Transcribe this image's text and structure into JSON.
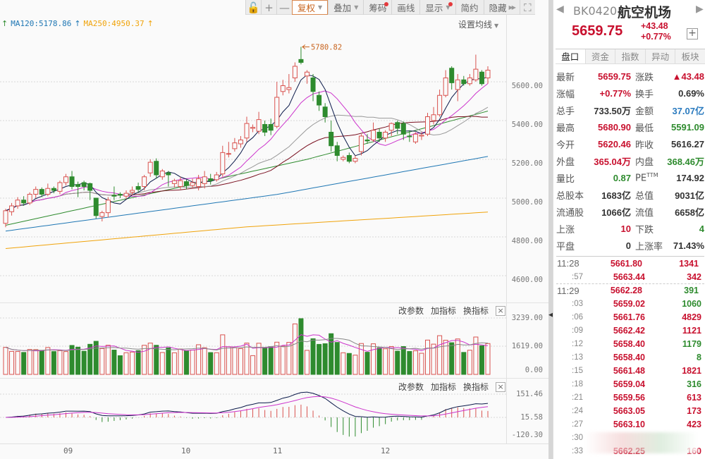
{
  "toolbar": {
    "buttons": [
      {
        "id": "lock",
        "label": "🔓",
        "icon": "unlock-icon"
      },
      {
        "id": "zoom_in",
        "label": "+",
        "icon": "plus-icon"
      },
      {
        "id": "zoom_out",
        "label": "—",
        "icon": "minus-icon"
      },
      {
        "id": "fuquan",
        "label": "复权",
        "caret": true,
        "active": true
      },
      {
        "id": "diejia",
        "label": "叠加",
        "caret": true
      },
      {
        "id": "chouma",
        "label": "筹码",
        "dot": true
      },
      {
        "id": "huaxian",
        "label": "画线"
      },
      {
        "id": "xianshi",
        "label": "显示",
        "caret": true,
        "dot": true
      },
      {
        "id": "jianyue",
        "label": "简约"
      },
      {
        "id": "yincang",
        "label": "隐藏",
        "double_arrow": true
      },
      {
        "id": "fullscreen",
        "label": "⛶",
        "icon": "fullscreen-icon"
      }
    ]
  },
  "ma_legend": [
    {
      "label": "",
      "arrow": "↑",
      "color": "#2e8b2e"
    },
    {
      "label": "MA120:5178.86",
      "arrow": "↑",
      "color": "#1f77b4"
    },
    {
      "label": "MA250:4950.37",
      "arrow": "↑",
      "color": "#f0a30a"
    }
  ],
  "set_ma_label": "设置均线",
  "main_chart": {
    "y_ticks": [
      "5600.00",
      "5400.00",
      "5200.00",
      "5000.00",
      "4800.00",
      "4600.00"
    ],
    "high_marker": "5780.82"
  },
  "volume_panel": {
    "actions": [
      "改参数",
      "加指标",
      "换指标"
    ],
    "y_ticks": [
      "3239.00",
      "1619.00",
      "0.00"
    ]
  },
  "macd_panel": {
    "actions": [
      "改参数",
      "加指标",
      "换指标"
    ],
    "y_ticks": [
      "151.46",
      "15.58",
      "-120.30"
    ]
  },
  "date_axis": [
    "09",
    "10",
    "11",
    "12"
  ],
  "colors": {
    "up": "#d9534f",
    "down": "#2e8b2e",
    "ma5": "#0b1a4a",
    "ma10": "#cc33cc",
    "ma20": "#999999",
    "ma30": "#7a1020",
    "ma60": "#2e8b2e",
    "ma120": "#1f77b4",
    "ma250": "#f0a30a",
    "accent_red": "#c8102e",
    "accent_green": "#2e8b2e",
    "accent_blue": "#2b7bbf"
  },
  "quote": {
    "code": "BK0420",
    "name": "航空机场",
    "price": "5659.75",
    "change": "+43.48",
    "change_pct": "+0.77%",
    "tabs": [
      "盘口",
      "资金",
      "指数",
      "异动",
      "板块"
    ],
    "rows": [
      {
        "l": "最新",
        "v": "5659.75",
        "vc": "red",
        "l2": "涨跌",
        "v2": "▲43.48",
        "v2c": "red"
      },
      {
        "l": "涨幅",
        "v": "+0.77%",
        "vc": "red",
        "l2": "换手",
        "v2": "0.69%",
        "v2c": "dark"
      },
      {
        "l": "总手",
        "v": "733.50万",
        "vc": "dark",
        "l2": "金额",
        "v2": "37.07亿",
        "v2c": "blue"
      },
      {
        "l": "最高",
        "v": "5680.90",
        "vc": "red",
        "l2": "最低",
        "v2": "5591.09",
        "v2c": "green"
      },
      {
        "l": "今开",
        "v": "5620.46",
        "vc": "red",
        "l2": "昨收",
        "v2": "5616.27",
        "v2c": "dark"
      },
      {
        "l": "外盘",
        "v": "365.04万",
        "vc": "red",
        "l2": "内盘",
        "v2": "368.46万",
        "v2c": "green"
      },
      {
        "l": "量比",
        "v": "0.87",
        "vc": "green",
        "l2": "PE",
        "l2sup": "TTM",
        "v2": "174.92",
        "v2c": "dark"
      },
      {
        "l": "总股本",
        "v": "1683亿",
        "vc": "dark",
        "l2": "总值",
        "v2": "9031亿",
        "v2c": "dark"
      },
      {
        "l": "流通股",
        "v": "1066亿",
        "vc": "dark",
        "l2": "流值",
        "v2": "6658亿",
        "v2c": "dark"
      },
      {
        "l": "上涨",
        "v": "10",
        "vc": "red",
        "l2": "下跌",
        "v2": "4",
        "v2c": "green"
      },
      {
        "l": "平盘",
        "v": "0",
        "vc": "dark",
        "l2": "上涨率",
        "v2": "71.43%",
        "v2c": "dark"
      }
    ]
  },
  "ticks": [
    {
      "time": "11:28",
      "full": true,
      "price": "5661.80",
      "vol": "1341",
      "vc": "red"
    },
    {
      "time": ":57",
      "price": "5663.44",
      "vol": "342",
      "vc": "red"
    },
    {
      "time": "11:29",
      "full": true,
      "sep": true,
      "price": "5662.28",
      "vol": "391",
      "vc": "green"
    },
    {
      "time": ":03",
      "price": "5659.02",
      "vol": "1060",
      "vc": "green"
    },
    {
      "time": ":06",
      "price": "5661.76",
      "vol": "4829",
      "vc": "red"
    },
    {
      "time": ":09",
      "price": "5662.42",
      "vol": "1121",
      "vc": "red"
    },
    {
      "time": ":12",
      "price": "5658.40",
      "vol": "1179",
      "vc": "green"
    },
    {
      "time": ":13",
      "price": "5658.40",
      "vol": "8",
      "vc": "green"
    },
    {
      "time": ":15",
      "price": "5661.48",
      "vol": "1821",
      "vc": "red"
    },
    {
      "time": ":18",
      "price": "5659.04",
      "vol": "316",
      "vc": "green"
    },
    {
      "time": ":21",
      "price": "5659.56",
      "vol": "613",
      "vc": "red"
    },
    {
      "time": ":24",
      "price": "5663.05",
      "vol": "173",
      "vc": "red"
    },
    {
      "time": ":27",
      "price": "5663.10",
      "vol": "423",
      "vc": "red"
    },
    {
      "time": ":30",
      "price": "",
      "vol": "",
      "vc": "green"
    },
    {
      "time": ":33",
      "price": "5662.25",
      "vol": "160",
      "vc": "red"
    }
  ],
  "candles": [
    [
      4870,
      4935,
      4850,
      4945,
      1
    ],
    [
      4930,
      4960,
      4910,
      4975,
      1
    ],
    [
      4960,
      4990,
      4945,
      5005,
      1
    ],
    [
      4990,
      4975,
      4960,
      5010,
      0
    ],
    [
      4975,
      5020,
      4965,
      5030,
      1
    ],
    [
      5020,
      5045,
      5000,
      5060,
      1
    ],
    [
      5045,
      5020,
      5005,
      5055,
      0
    ],
    [
      5020,
      5050,
      5010,
      5075,
      1
    ],
    [
      5050,
      5040,
      5025,
      5060,
      0
    ],
    [
      5035,
      5080,
      5020,
      5090,
      1
    ],
    [
      5080,
      5110,
      5065,
      5125,
      1
    ],
    [
      5110,
      5060,
      5045,
      5140,
      0
    ],
    [
      5070,
      5060,
      5005,
      5085,
      0
    ],
    [
      5060,
      5080,
      5040,
      5090,
      0
    ],
    [
      5075,
      5040,
      4990,
      5080,
      0
    ],
    [
      5000,
      4910,
      4895,
      5000,
      0
    ],
    [
      4905,
      4925,
      4880,
      4935,
      1
    ],
    [
      4925,
      4990,
      4900,
      5005,
      1
    ],
    [
      5015,
      5010,
      4990,
      5060,
      0
    ],
    [
      5020,
      5015,
      5000,
      5030,
      0
    ],
    [
      5010,
      5025,
      4995,
      5040,
      1
    ],
    [
      5030,
      5040,
      5015,
      5060,
      1
    ],
    [
      5045,
      5060,
      5030,
      5080,
      0
    ],
    [
      5060,
      5110,
      5040,
      5120,
      1
    ],
    [
      5130,
      5185,
      5110,
      5200,
      1
    ],
    [
      5190,
      5120,
      5100,
      5205,
      0
    ],
    [
      5110,
      5140,
      5095,
      5150,
      1
    ],
    [
      5130,
      5120,
      5060,
      5140,
      0
    ],
    [
      5090,
      5075,
      5055,
      5100,
      1
    ],
    [
      5060,
      5090,
      5045,
      5110,
      1
    ],
    [
      5085,
      5065,
      5045,
      5095,
      0
    ],
    [
      5080,
      5065,
      5050,
      5100,
      1
    ],
    [
      5060,
      5100,
      5040,
      5120,
      1
    ],
    [
      5075,
      5110,
      5050,
      5140,
      1
    ],
    [
      5100,
      5090,
      5070,
      5125,
      0
    ],
    [
      5095,
      5120,
      5085,
      5135,
      1
    ],
    [
      5125,
      5235,
      5110,
      5270,
      1
    ],
    [
      5230,
      5230,
      5210,
      5290,
      1
    ],
    [
      5255,
      5285,
      5240,
      5310,
      1
    ],
    [
      5280,
      5300,
      5260,
      5320,
      1
    ],
    [
      5310,
      5385,
      5290,
      5420,
      1
    ],
    [
      5365,
      5360,
      5340,
      5380,
      1
    ],
    [
      5345,
      5405,
      5330,
      5445,
      1
    ],
    [
      5380,
      5340,
      5320,
      5400,
      0
    ],
    [
      5350,
      5380,
      5325,
      5410,
      0
    ],
    [
      5370,
      5520,
      5360,
      5600,
      1
    ],
    [
      5550,
      5580,
      5530,
      5610,
      1
    ],
    [
      5560,
      5570,
      5540,
      5640,
      1
    ],
    [
      5620,
      5680,
      5600,
      5700,
      1
    ],
    [
      5715,
      5700,
      5690,
      5780,
      0
    ],
    [
      5630,
      5650,
      5590,
      5660,
      1
    ],
    [
      5620,
      5550,
      5500,
      5640,
      0
    ],
    [
      5530,
      5480,
      5450,
      5550,
      0
    ],
    [
      5470,
      5420,
      5390,
      5490,
      0
    ],
    [
      5340,
      5270,
      5240,
      5400,
      0
    ],
    [
      5270,
      5220,
      5190,
      5290,
      0
    ],
    [
      5200,
      5210,
      5190,
      5220,
      1
    ],
    [
      5220,
      5190,
      5180,
      5235,
      0
    ],
    [
      5190,
      5205,
      5180,
      5220,
      1
    ],
    [
      5240,
      5320,
      5220,
      5330,
      1
    ],
    [
      5295,
      5300,
      5280,
      5330,
      0
    ],
    [
      5300,
      5350,
      5290,
      5390,
      1
    ],
    [
      5340,
      5310,
      5290,
      5360,
      0
    ],
    [
      5310,
      5340,
      5290,
      5350,
      1
    ],
    [
      5350,
      5385,
      5320,
      5390,
      1
    ],
    [
      5390,
      5360,
      5330,
      5400,
      0
    ],
    [
      5385,
      5330,
      5300,
      5395,
      0
    ],
    [
      5320,
      5320,
      5290,
      5350,
      0
    ],
    [
      5290,
      5330,
      5280,
      5340,
      1
    ],
    [
      5325,
      5320,
      5300,
      5340,
      1
    ],
    [
      5330,
      5420,
      5320,
      5440,
      1
    ],
    [
      5400,
      5430,
      5380,
      5470,
      1
    ],
    [
      5430,
      5530,
      5420,
      5560,
      1
    ],
    [
      5530,
      5620,
      5520,
      5660,
      1
    ],
    [
      5670,
      5595,
      5560,
      5680,
      0
    ],
    [
      5560,
      5610,
      5500,
      5640,
      1
    ],
    [
      5610,
      5590,
      5580,
      5630,
      0
    ],
    [
      5590,
      5620,
      5580,
      5640,
      1
    ],
    [
      5610,
      5665,
      5600,
      5740,
      1
    ],
    [
      5650,
      5590,
      5580,
      5660,
      0
    ],
    [
      5620,
      5660,
      5590,
      5680,
      1
    ]
  ]
}
